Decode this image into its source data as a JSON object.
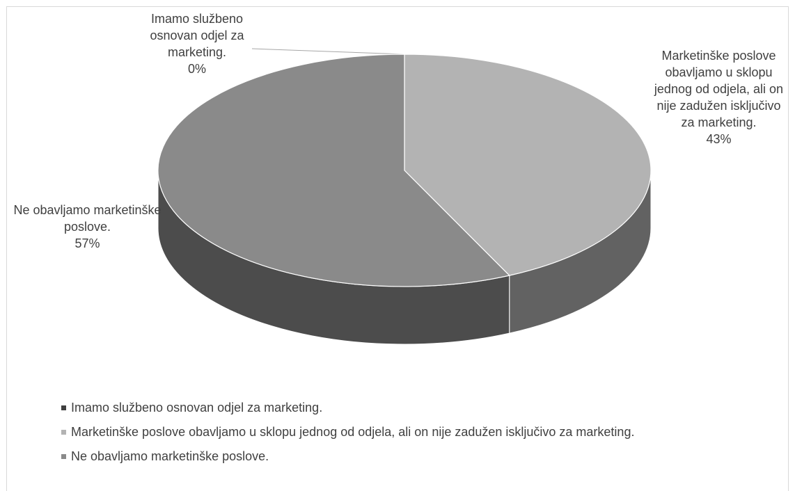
{
  "chart_data": {
    "type": "pie3d",
    "categories": [
      "Imamo službeno osnovan odjel za marketing.",
      "Marketinške poslove obavljamo u sklopu jednog od odjela, ali on nije zadužen isključivo za marketing.",
      "Ne obavljamo marketinške poslove."
    ],
    "values": [
      0,
      43,
      57
    ],
    "value_labels": [
      "0%",
      "43%",
      "57%"
    ],
    "colors": [
      "#404040",
      "#b3b3b3",
      "#8a8a8a"
    ],
    "legend": "bottom"
  }
}
